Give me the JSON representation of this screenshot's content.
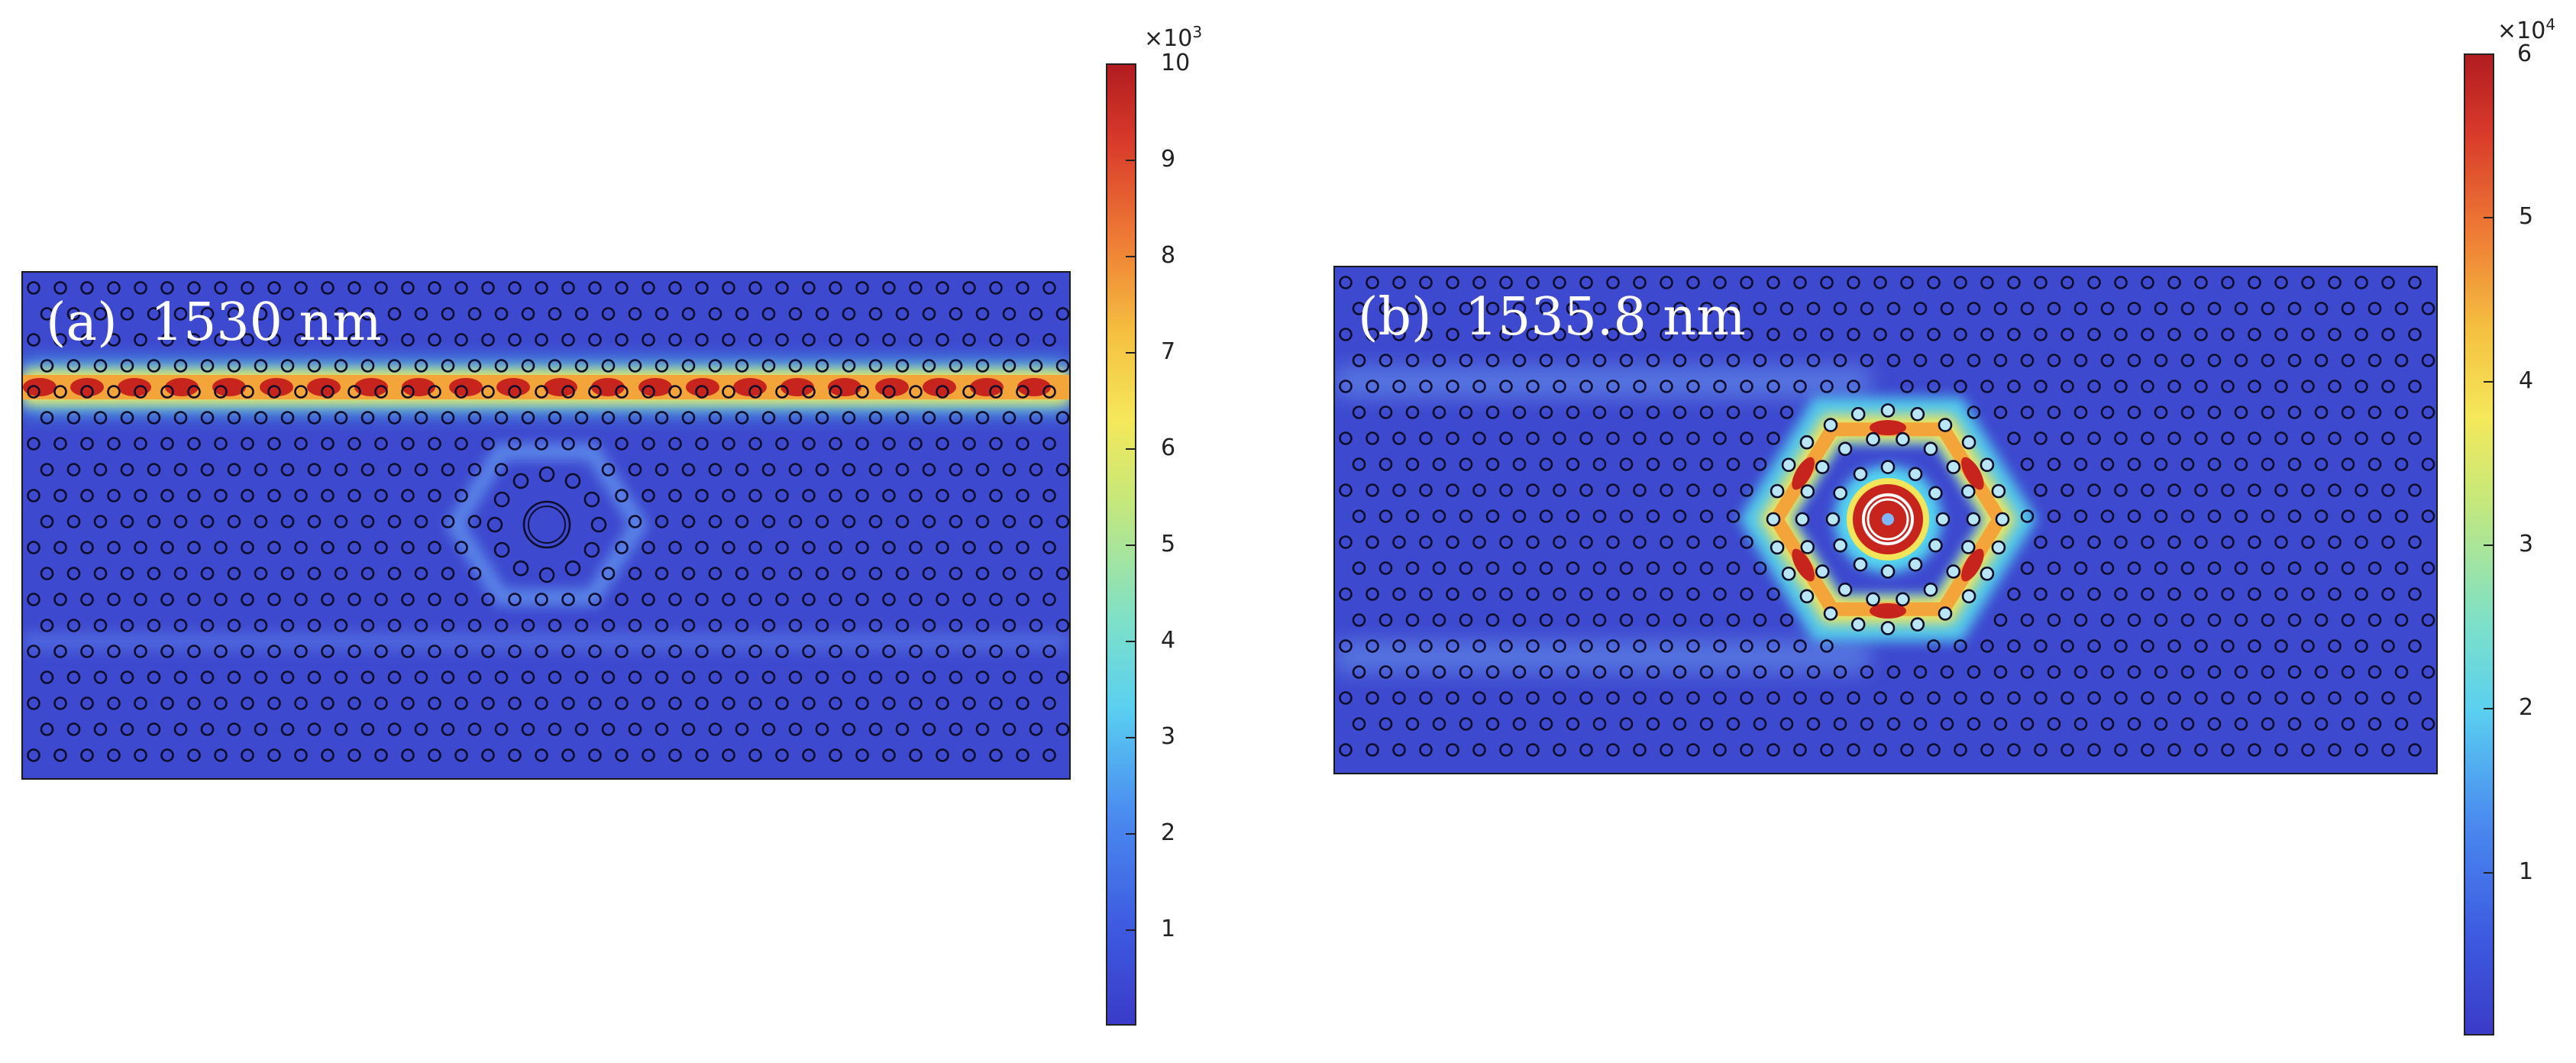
{
  "panels": [
    {
      "label": "(a)  1530 nm",
      "wavelength_nm": 1530,
      "colorbar": {
        "multiplier_base": "×10",
        "multiplier_exp": "3",
        "max_label": "10",
        "ticks": [
          "1",
          "2",
          "3",
          "4",
          "5",
          "6",
          "7",
          "8",
          "9"
        ]
      }
    },
    {
      "label": "(b)  1535.8 nm",
      "wavelength_nm": 1535.8,
      "colorbar": {
        "multiplier_base": "×10",
        "multiplier_exp": "4",
        "max_label": "6",
        "ticks": [
          "1",
          "2",
          "3",
          "4",
          "5"
        ]
      }
    }
  ],
  "colors": {
    "background_field": "#3d49cf",
    "hot": "#c8241e",
    "warm": "#f4a53a",
    "mid": "#f2e55a",
    "cool": "#55d6ef"
  }
}
